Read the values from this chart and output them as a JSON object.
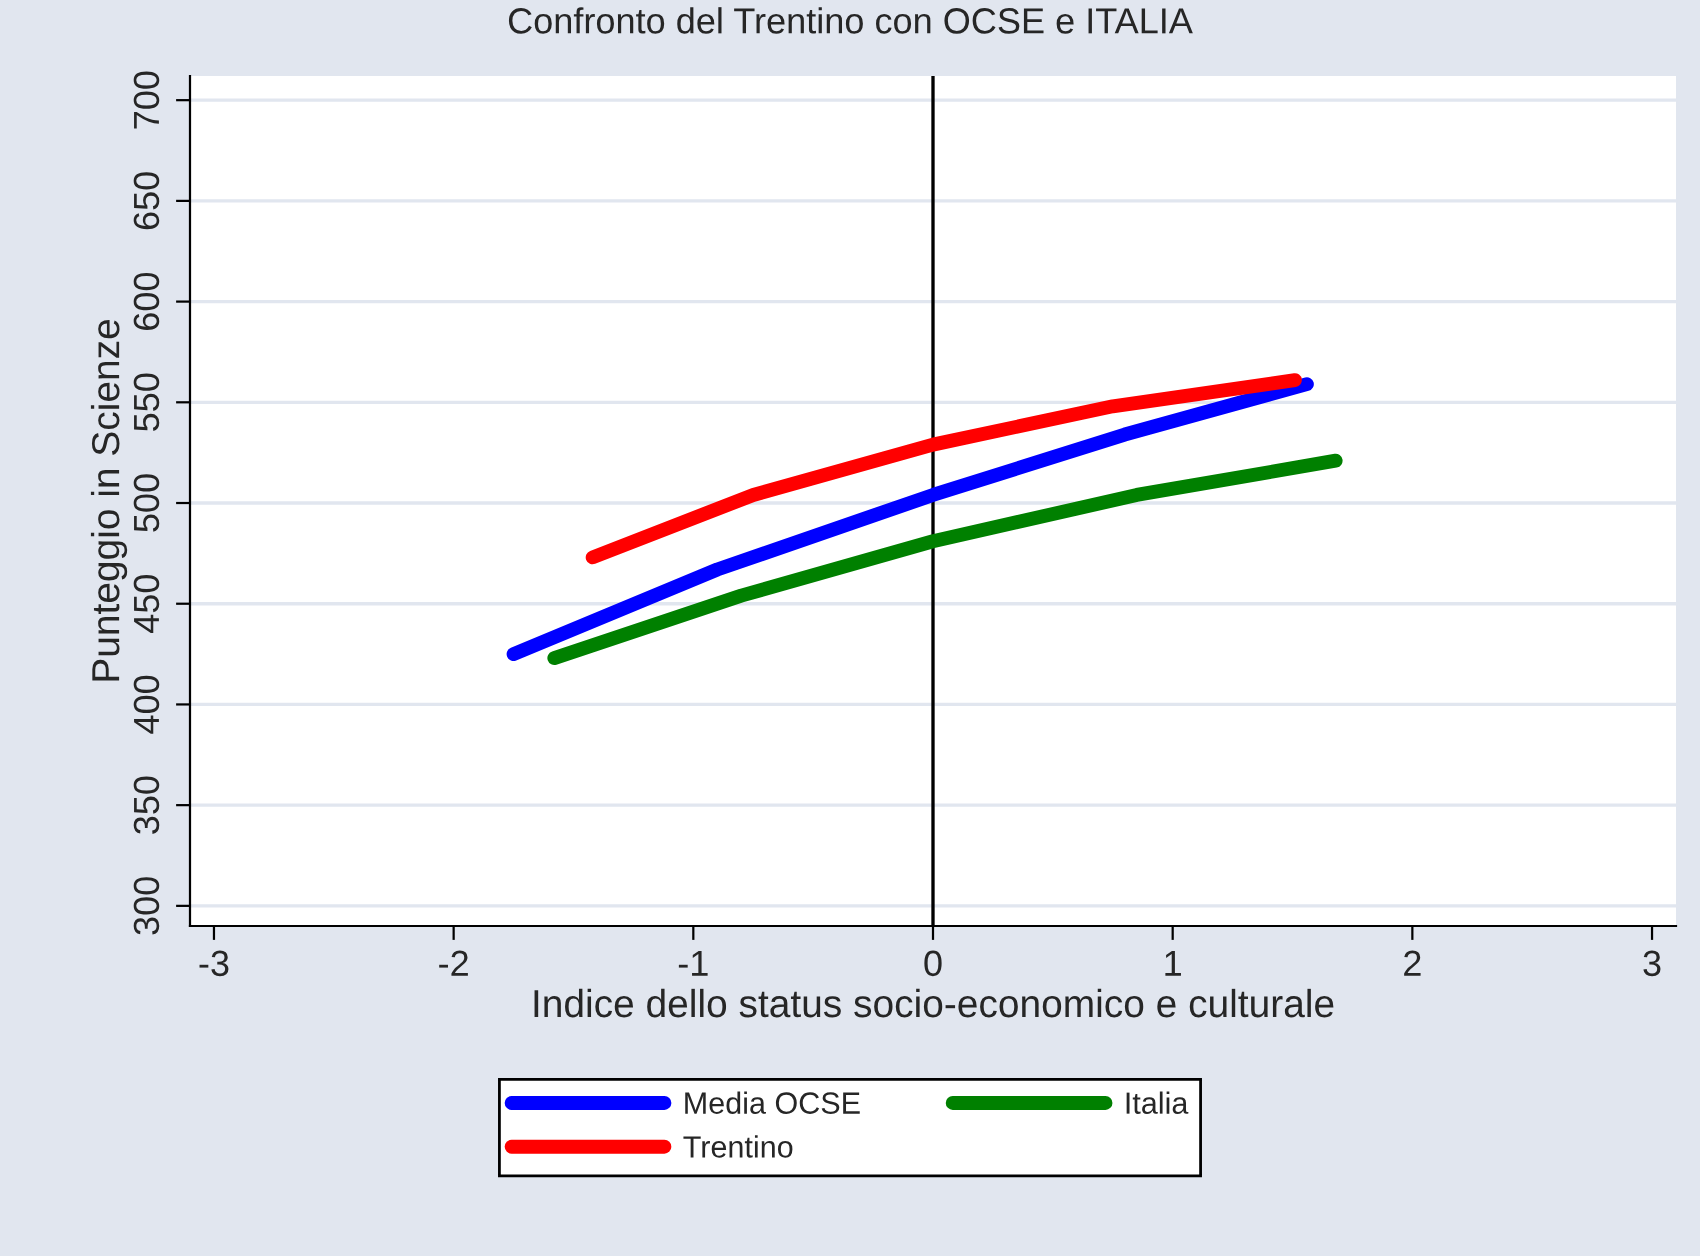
{
  "chart_data": {
    "type": "line",
    "title": "Confronto del Trentino con OCSE e ITALIA",
    "xlabel": "Indice dello status socio-economico e culturale",
    "ylabel": "Punteggio in Scienze",
    "series": [
      {
        "name": "Media OCSE",
        "color": "#0000ff",
        "x": [
          -1.75,
          -0.9,
          0,
          0.8,
          1.56
        ],
        "values": [
          425,
          467,
          504,
          534,
          559
        ]
      },
      {
        "name": "Italia",
        "color": "#008000",
        "x": [
          -1.58,
          -0.8,
          0,
          0.85,
          1.68
        ],
        "values": [
          423,
          454,
          481,
          504,
          521
        ]
      },
      {
        "name": "Trentino",
        "color": "#ff0000",
        "x": [
          -1.42,
          -0.75,
          0,
          0.75,
          1.51
        ],
        "values": [
          473,
          504,
          529,
          548,
          561
        ]
      }
    ],
    "xlim": [
      -3.1,
      3.1
    ],
    "ylim": [
      290,
      712
    ],
    "xticks": [
      -3,
      -2,
      -1,
      0,
      1,
      2,
      3
    ],
    "yticks": [
      300,
      350,
      400,
      450,
      500,
      550,
      600,
      650,
      700
    ],
    "ref_lines": [
      {
        "axis": "x",
        "value": 0,
        "color": "#000000"
      }
    ],
    "grid": "y",
    "legend": "bottom",
    "line_style": "solid",
    "marker": "none"
  }
}
